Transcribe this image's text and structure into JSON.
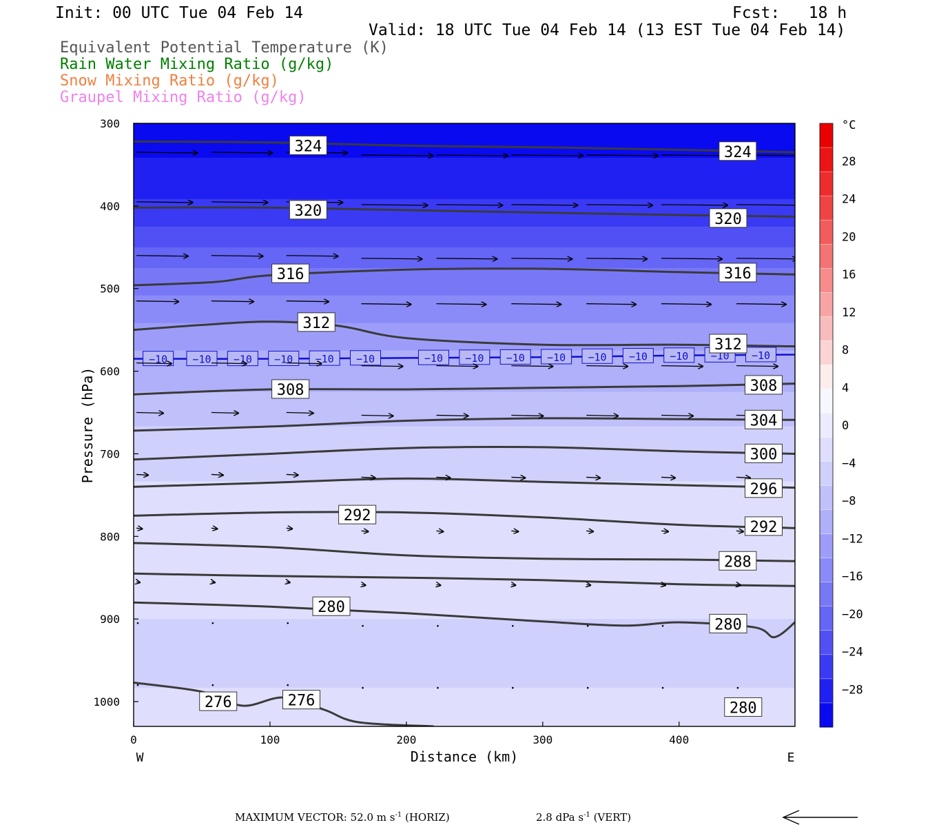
{
  "header": {
    "init": "Init: 00 UTC Tue 04 Feb 14",
    "fcst": "Fcst:   18 h",
    "valid": "Valid: 18 UTC Tue 04 Feb 14 (13 EST Tue 04 Feb 14)"
  },
  "legend": [
    {
      "label": "Equivalent Potential Temperature (K)",
      "color": "#555555"
    },
    {
      "label": "Rain Water Mixing Ratio (g/kg)",
      "color": "#008000"
    },
    {
      "label": "Snow Mixing Ratio (g/kg)",
      "color": "#f08040"
    },
    {
      "label": "Graupel Mixing Ratio (g/kg)",
      "color": "#ee82ee"
    }
  ],
  "footer": {
    "max_vector": "MAXIMUM VECTOR:  52.0 m s",
    "horiz_suffix": " (HORIZ)",
    "vert": "2.8 dPa s",
    "vert_suffix": " (VERT)",
    "exponent": "-1"
  },
  "chart_data": {
    "type": "cross-section",
    "xlabel": "Distance (km)",
    "ylabel": "Pressure (hPa)",
    "xlim": [
      0,
      485
    ],
    "ylim": [
      1030,
      300
    ],
    "xticks": [
      0,
      100,
      200,
      300,
      400
    ],
    "yticks": [
      300,
      400,
      500,
      600,
      700,
      800,
      900,
      1000
    ],
    "west_label": "W",
    "east_label": "E",
    "temperature_colorbar": {
      "unit": "°C",
      "tick_labels": [
        "28",
        "24",
        "20",
        "16",
        "12",
        "8",
        "4",
        "0",
        "−4",
        "−8",
        "−12",
        "−16",
        "−20",
        "−24",
        "−28"
      ],
      "tick_values": [
        28,
        24,
        20,
        16,
        12,
        8,
        4,
        0,
        -4,
        -8,
        -12,
        -16,
        -20,
        -24,
        -28
      ],
      "range": [
        -32,
        32
      ],
      "colors": [
        "#0a0af0",
        "#2020f2",
        "#3a3af4",
        "#5050f5",
        "#6565f6",
        "#7878f7",
        "#8a8af8",
        "#9d9df9",
        "#afaffa",
        "#c0c0fb",
        "#d0d0fc",
        "#dfdffd",
        "#ececfe",
        "#f7f7ff",
        "#fdeeee",
        "#fbd4d4",
        "#f9bcbc",
        "#f8a4a4",
        "#f68c8c",
        "#f47474",
        "#f25c5c",
        "#f04444",
        "#ee2c2c",
        "#ec1414",
        "#ea0000"
      ]
    },
    "temperature_field": [
      {
        "p": 300,
        "t": -31
      },
      {
        "p": 350,
        "t": -29
      },
      {
        "p": 400,
        "t": -26
      },
      {
        "p": 450,
        "t": -21
      },
      {
        "p": 500,
        "t": -17
      },
      {
        "p": 550,
        "t": -13
      },
      {
        "p": 600,
        "t": -10
      },
      {
        "p": 650,
        "t": -7
      },
      {
        "p": 700,
        "t": -5
      },
      {
        "p": 750,
        "t": -3
      },
      {
        "p": 800,
        "t": -2
      },
      {
        "p": 850,
        "t": -3
      },
      {
        "p": 900,
        "t": -4
      },
      {
        "p": 950,
        "t": -5
      },
      {
        "p": 1000,
        "t": -3
      },
      {
        "p": 1030,
        "t": -1
      }
    ],
    "isotherm": {
      "value": -10,
      "label": "−10",
      "color": "#1010d0",
      "points": [
        [
          0,
          585
        ],
        [
          100,
          585
        ],
        [
          200,
          584
        ],
        [
          300,
          583
        ],
        [
          400,
          581
        ],
        [
          485,
          580
        ]
      ]
    },
    "theta_e_contours": [
      {
        "value": 324,
        "points": [
          [
            0,
            322
          ],
          [
            100,
            323
          ],
          [
            200,
            327
          ],
          [
            300,
            329
          ],
          [
            400,
            332
          ],
          [
            485,
            335
          ]
        ]
      },
      {
        "value": 320,
        "points": [
          [
            0,
            402
          ],
          [
            100,
            402
          ],
          [
            200,
            405
          ],
          [
            300,
            408
          ],
          [
            400,
            411
          ],
          [
            485,
            413
          ]
        ]
      },
      {
        "value": 316,
        "points": [
          [
            0,
            496
          ],
          [
            60,
            492
          ],
          [
            100,
            484
          ],
          [
            200,
            477
          ],
          [
            300,
            476
          ],
          [
            400,
            480
          ],
          [
            485,
            483
          ]
        ]
      },
      {
        "value": 312,
        "points": [
          [
            0,
            550
          ],
          [
            50,
            544
          ],
          [
            100,
            540
          ],
          [
            150,
            545
          ],
          [
            200,
            560
          ],
          [
            300,
            568
          ],
          [
            400,
            568
          ],
          [
            485,
            570
          ]
        ]
      },
      {
        "value": 308,
        "points": [
          [
            0,
            628
          ],
          [
            100,
            622
          ],
          [
            200,
            622
          ],
          [
            300,
            620
          ],
          [
            400,
            618
          ],
          [
            485,
            615
          ]
        ]
      },
      {
        "value": 304,
        "points": [
          [
            0,
            672
          ],
          [
            100,
            667
          ],
          [
            200,
            660
          ],
          [
            300,
            657
          ],
          [
            400,
            658
          ],
          [
            485,
            659
          ]
        ]
      },
      {
        "value": 300,
        "points": [
          [
            0,
            707
          ],
          [
            100,
            700
          ],
          [
            200,
            693
          ],
          [
            300,
            692
          ],
          [
            400,
            697
          ],
          [
            485,
            700
          ]
        ]
      },
      {
        "value": 296,
        "points": [
          [
            0,
            740
          ],
          [
            100,
            735
          ],
          [
            200,
            730
          ],
          [
            300,
            734
          ],
          [
            400,
            738
          ],
          [
            485,
            741
          ]
        ]
      },
      {
        "value": 292,
        "points": [
          [
            0,
            775
          ],
          [
            100,
            771
          ],
          [
            200,
            771
          ],
          [
            300,
            777
          ],
          [
            400,
            786
          ],
          [
            485,
            790
          ]
        ]
      },
      {
        "value": 288,
        "points": [
          [
            0,
            808
          ],
          [
            100,
            813
          ],
          [
            200,
            823
          ],
          [
            300,
            827
          ],
          [
            400,
            828
          ],
          [
            485,
            830
          ]
        ]
      },
      {
        "value": 284,
        "points": [
          [
            0,
            845
          ],
          [
            100,
            848
          ],
          [
            200,
            850
          ],
          [
            300,
            853
          ],
          [
            400,
            858
          ],
          [
            485,
            860
          ]
        ]
      },
      {
        "value": 280,
        "points": [
          [
            0,
            880
          ],
          [
            100,
            885
          ],
          [
            200,
            893
          ],
          [
            300,
            903
          ],
          [
            360,
            908
          ],
          [
            400,
            904
          ],
          [
            455,
            910
          ],
          [
            470,
            922
          ],
          [
            485,
            904
          ]
        ]
      },
      {
        "value": 276,
        "points": [
          [
            0,
            977
          ],
          [
            50,
            988
          ],
          [
            80,
            1005
          ],
          [
            110,
            995
          ],
          [
            140,
            1010
          ],
          [
            165,
            1025
          ],
          [
            220,
            1030
          ]
        ]
      }
    ],
    "theta_e_labels": [
      {
        "text": "324",
        "x": 128,
        "p": 327
      },
      {
        "text": "324",
        "x": 443,
        "p": 334
      },
      {
        "text": "320",
        "x": 128,
        "p": 405
      },
      {
        "text": "320",
        "x": 436,
        "p": 415
      },
      {
        "text": "316",
        "x": 115,
        "p": 482
      },
      {
        "text": "316",
        "x": 443,
        "p": 481
      },
      {
        "text": "312",
        "x": 134,
        "p": 541
      },
      {
        "text": "312",
        "x": 436,
        "p": 567
      },
      {
        "text": "308",
        "x": 115,
        "p": 622
      },
      {
        "text": "308",
        "x": 462,
        "p": 617
      },
      {
        "text": "304",
        "x": 462,
        "p": 659
      },
      {
        "text": "300",
        "x": 462,
        "p": 700
      },
      {
        "text": "296",
        "x": 462,
        "p": 742
      },
      {
        "text": "292",
        "x": 164,
        "p": 774
      },
      {
        "text": "292",
        "x": 462,
        "p": 788
      },
      {
        "text": "288",
        "x": 443,
        "p": 830
      },
      {
        "text": "280",
        "x": 145,
        "p": 885
      },
      {
        "text": "280",
        "x": 436,
        "p": 906
      },
      {
        "text": "280",
        "x": 447,
        "p": 1007
      },
      {
        "text": "276",
        "x": 62,
        "p": 1000
      },
      {
        "text": "276",
        "x": 123,
        "p": 998
      }
    ],
    "wind_rows": [
      {
        "p": 335,
        "len": 52
      },
      {
        "p": 395,
        "len": 48
      },
      {
        "p": 460,
        "len": 44
      },
      {
        "p": 515,
        "len": 36
      },
      {
        "p": 590,
        "len": 30
      },
      {
        "p": 650,
        "len": 23
      },
      {
        "p": 725,
        "len": 10
      },
      {
        "p": 790,
        "len": 5
      },
      {
        "p": 855,
        "len": 3
      },
      {
        "p": 905,
        "len": 1
      },
      {
        "p": 980,
        "len": 1
      }
    ]
  }
}
